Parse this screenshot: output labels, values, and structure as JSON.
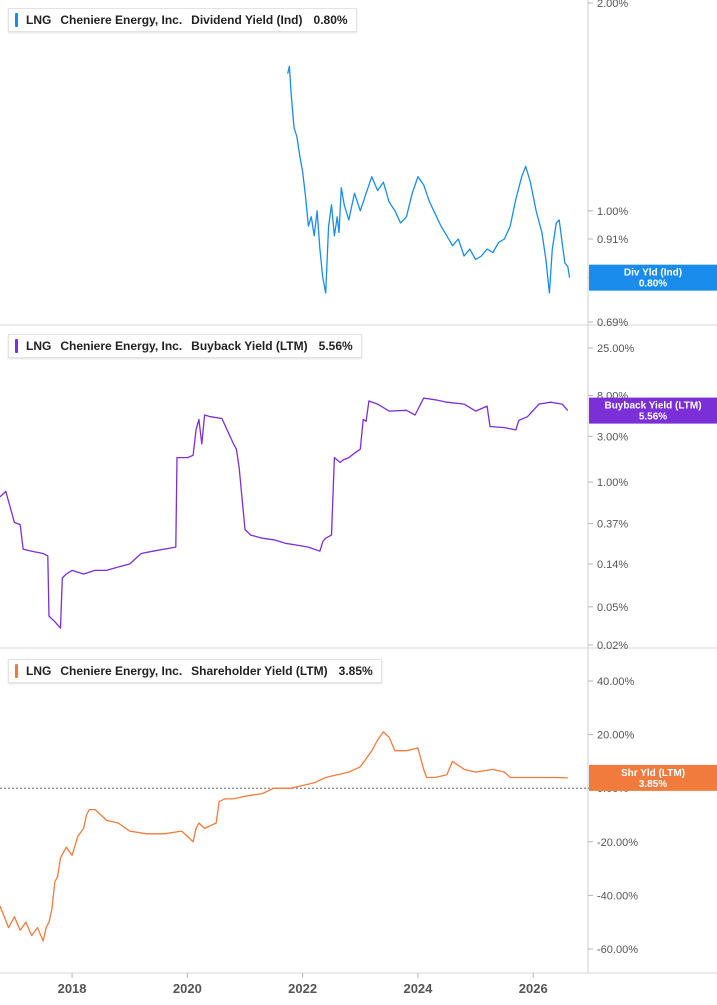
{
  "chart_data": [
    {
      "type": "line",
      "ticker": "LNG",
      "company": "Cheniere Energy, Inc.",
      "metric": "Dividend Yield (Ind)",
      "latest_value": "0.80%",
      "badge": {
        "line1": "Div Yld (Ind)",
        "line2": "0.80%"
      },
      "color": "#1a8ceb",
      "yscale": "log",
      "yticks": [
        {
          "v": 2.0,
          "label": "2.00%"
        },
        {
          "v": 1.0,
          "label": "1.00%"
        },
        {
          "v": 0.91,
          "label": "0.91%"
        },
        {
          "v": 0.8,
          "label": "0.80%"
        },
        {
          "v": 0.69,
          "label": "0.69%"
        }
      ],
      "ylim": [
        0.69,
        2.0
      ],
      "series": [
        {
          "x": [
            2021.74,
            2021.77,
            2021.8,
            2021.85,
            2021.9,
            2021.95,
            2022.0,
            2022.05,
            2022.1,
            2022.15,
            2022.2,
            2022.25,
            2022.3,
            2022.35,
            2022.4,
            2022.45,
            2022.5,
            2022.55,
            2022.6,
            2022.63,
            2022.67,
            2022.72,
            2022.8,
            2022.9,
            2023.0,
            2023.1,
            2023.2,
            2023.3,
            2023.4,
            2023.5,
            2023.6,
            2023.7,
            2023.8,
            2023.9,
            2024.0,
            2024.1,
            2024.2,
            2024.3,
            2024.4,
            2024.5,
            2024.6,
            2024.7,
            2024.8,
            2024.9,
            2025.0,
            2025.1,
            2025.2,
            2025.3,
            2025.4,
            2025.5,
            2025.6,
            2025.7,
            2025.8,
            2025.87,
            2025.95,
            2026.05,
            2026.15,
            2026.22,
            2026.28,
            2026.33,
            2026.4,
            2026.45,
            2026.5,
            2026.55,
            2026.6,
            2026.63
          ],
          "y": [
            1.58,
            1.62,
            1.48,
            1.32,
            1.28,
            1.2,
            1.14,
            1.05,
            0.95,
            0.98,
            0.92,
            1.0,
            0.88,
            0.8,
            0.76,
            0.95,
            1.02,
            0.92,
            0.98,
            0.93,
            1.08,
            1.02,
            0.97,
            1.06,
            1.0,
            1.06,
            1.12,
            1.07,
            1.1,
            1.03,
            1.0,
            0.96,
            0.98,
            1.06,
            1.12,
            1.09,
            1.03,
            0.99,
            0.95,
            0.92,
            0.89,
            0.91,
            0.86,
            0.88,
            0.85,
            0.86,
            0.88,
            0.87,
            0.9,
            0.91,
            0.95,
            1.04,
            1.12,
            1.16,
            1.1,
            1.0,
            0.93,
            0.85,
            0.76,
            0.88,
            0.96,
            0.97,
            0.9,
            0.84,
            0.83,
            0.8
          ]
        }
      ]
    },
    {
      "type": "line",
      "ticker": "LNG",
      "company": "Cheniere Energy, Inc.",
      "metric": "Buyback Yield (LTM)",
      "latest_value": "5.56%",
      "badge": {
        "line1": "Buyback Yield (LTM)",
        "line2": "5.56%"
      },
      "color": "#7b2fd6",
      "yscale": "log",
      "yticks": [
        {
          "v": 25.0,
          "label": "25.00%"
        },
        {
          "v": 8.0,
          "label": "8.00%"
        },
        {
          "v": 3.0,
          "label": "3.00%"
        },
        {
          "v": 1.0,
          "label": "1.00%"
        },
        {
          "v": 0.37,
          "label": "0.37%"
        },
        {
          "v": 0.14,
          "label": "0.14%"
        },
        {
          "v": 0.05,
          "label": "0.05%"
        },
        {
          "v": 0.02,
          "label": "0.02%"
        }
      ],
      "ylim": [
        0.02,
        25.0
      ],
      "series": [
        {
          "x": [
            2016.75,
            2016.85,
            2017.0,
            2017.1,
            2017.15,
            2017.3,
            2017.5,
            2017.58,
            2017.6,
            2017.7,
            2017.8,
            2017.83,
            2017.9,
            2018.0,
            2018.2,
            2018.4,
            2018.6,
            2018.8,
            2019.0,
            2019.2,
            2019.4,
            2019.6,
            2019.8,
            2019.82,
            2020.0,
            2020.1,
            2020.15,
            2020.2,
            2020.25,
            2020.3,
            2020.4,
            2020.6,
            2020.8,
            2020.85,
            2020.9,
            2021.0,
            2021.1,
            2021.3,
            2021.5,
            2021.7,
            2021.9,
            2022.1,
            2022.3,
            2022.35,
            2022.4,
            2022.5,
            2022.55,
            2022.6,
            2022.65,
            2022.7,
            2022.8,
            2022.9,
            2023.0,
            2023.05,
            2023.1,
            2023.15,
            2023.3,
            2023.5,
            2023.8,
            2023.95,
            2024.1,
            2024.3,
            2024.5,
            2024.8,
            2025.0,
            2025.2,
            2025.25,
            2025.5,
            2025.7,
            2025.75,
            2025.9,
            2026.1,
            2026.3,
            2026.5,
            2026.6
          ],
          "y": [
            0.7,
            0.8,
            0.38,
            0.36,
            0.2,
            0.19,
            0.18,
            0.17,
            0.04,
            0.035,
            0.03,
            0.1,
            0.11,
            0.12,
            0.11,
            0.12,
            0.12,
            0.13,
            0.14,
            0.18,
            0.19,
            0.2,
            0.21,
            1.8,
            1.8,
            1.9,
            3.5,
            4.5,
            2.5,
            5.0,
            4.8,
            4.6,
            2.5,
            2.2,
            1.4,
            0.32,
            0.28,
            0.26,
            0.25,
            0.23,
            0.22,
            0.21,
            0.19,
            0.24,
            0.26,
            0.28,
            1.8,
            1.7,
            1.6,
            1.7,
            1.8,
            2.0,
            2.2,
            4.5,
            4.3,
            7.0,
            6.5,
            5.5,
            5.6,
            5.0,
            7.5,
            7.2,
            6.8,
            6.5,
            5.5,
            6.2,
            3.8,
            3.7,
            3.5,
            4.4,
            4.8,
            6.5,
            6.8,
            6.5,
            5.56
          ]
        }
      ]
    },
    {
      "type": "line",
      "ticker": "LNG",
      "company": "Cheniere Energy, Inc.",
      "metric": "Shareholder Yield (LTM)",
      "latest_value": "3.85%",
      "badge": {
        "line1": "Shr Yld (LTM)",
        "line2": "3.85%"
      },
      "color": "#f07b3c",
      "yscale": "linear",
      "yticks": [
        {
          "v": 40,
          "label": "40.00%"
        },
        {
          "v": 20,
          "label": "20.00%"
        },
        {
          "v": 0,
          "label": "0.00%"
        },
        {
          "v": -20,
          "label": "-20.00%"
        },
        {
          "v": -40,
          "label": "-40.00%"
        },
        {
          "v": -60,
          "label": "-60.00%"
        }
      ],
      "ylim": [
        -60,
        40
      ],
      "reference_line": 0,
      "series": [
        {
          "x": [
            2016.75,
            2016.9,
            2017.0,
            2017.1,
            2017.2,
            2017.3,
            2017.4,
            2017.5,
            2017.55,
            2017.6,
            2017.65,
            2017.7,
            2017.75,
            2017.8,
            2017.9,
            2018.0,
            2018.1,
            2018.2,
            2018.25,
            2018.3,
            2018.4,
            2018.6,
            2018.8,
            2019.0,
            2019.3,
            2019.6,
            2019.9,
            2020.0,
            2020.1,
            2020.15,
            2020.2,
            2020.3,
            2020.5,
            2020.55,
            2020.65,
            2020.8,
            2021.0,
            2021.3,
            2021.5,
            2021.8,
            2022.0,
            2022.2,
            2022.4,
            2022.6,
            2022.8,
            2023.0,
            2023.1,
            2023.2,
            2023.3,
            2023.4,
            2023.5,
            2023.6,
            2023.8,
            2024.0,
            2024.1,
            2024.15,
            2024.3,
            2024.5,
            2024.6,
            2024.8,
            2025.0,
            2025.3,
            2025.5,
            2025.6,
            2025.9,
            2026.2,
            2026.4,
            2026.6
          ],
          "y": [
            -44,
            -52,
            -48,
            -53,
            -50,
            -55,
            -52,
            -57,
            -52,
            -50,
            -45,
            -35,
            -33,
            -26,
            -22,
            -25,
            -18,
            -15,
            -10,
            -8,
            -8,
            -12,
            -13,
            -16,
            -17,
            -17,
            -16,
            -18,
            -20,
            -15,
            -13,
            -15,
            -13,
            -5,
            -4,
            -4,
            -3,
            -2,
            0,
            0,
            1,
            2,
            4,
            5,
            6,
            8,
            11,
            14,
            18,
            21,
            19,
            14,
            14,
            15,
            7,
            4,
            4,
            5,
            10,
            7,
            6,
            7,
            6,
            4,
            4,
            4,
            4,
            3.85
          ]
        }
      ]
    }
  ],
  "x_axis": {
    "ticks": [
      {
        "v": 2018,
        "label": "2018"
      },
      {
        "v": 2020,
        "label": "2020"
      },
      {
        "v": 2022,
        "label": "2022"
      },
      {
        "v": 2024,
        "label": "2024"
      },
      {
        "v": 2026,
        "label": "2026"
      }
    ],
    "range": [
      2016.75,
      2026.95
    ]
  }
}
